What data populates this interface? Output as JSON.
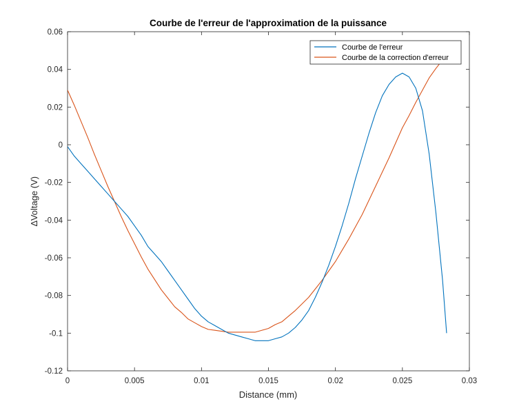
{
  "chart_data": {
    "type": "line",
    "title": "Courbe de l'erreur de l'approximation de la puissance",
    "xlabel": "Distance (mm)",
    "ylabel": "∆Voltage (V)",
    "xlim": [
      0,
      0.03
    ],
    "ylim": [
      -0.12,
      0.06
    ],
    "xticks": [
      0,
      0.005,
      0.01,
      0.015,
      0.02,
      0.025,
      0.03
    ],
    "xtick_labels": [
      "0",
      "0.005",
      "0.01",
      "0.015",
      "0.02",
      "0.025",
      "0.03"
    ],
    "yticks": [
      -0.12,
      -0.1,
      -0.08,
      -0.06,
      -0.04,
      -0.02,
      0,
      0.02,
      0.04,
      0.06
    ],
    "ytick_labels": [
      "-0.12",
      "-0.1",
      "-0.08",
      "-0.06",
      "-0.04",
      "-0.02",
      "0",
      "0.02",
      "0.04",
      "0.06"
    ],
    "grid": false,
    "legend_position": "top-right",
    "series": [
      {
        "name": "Courbe de l'erreur",
        "color": "#0072BD",
        "x": [
          0,
          0.0005,
          0.001,
          0.0015,
          0.002,
          0.0025,
          0.003,
          0.0035,
          0.004,
          0.0045,
          0.005,
          0.0055,
          0.006,
          0.0065,
          0.007,
          0.0075,
          0.008,
          0.0085,
          0.009,
          0.0095,
          0.01,
          0.0105,
          0.011,
          0.0115,
          0.012,
          0.0125,
          0.013,
          0.0135,
          0.014,
          0.0145,
          0.015,
          0.0155,
          0.016,
          0.0165,
          0.017,
          0.0175,
          0.018,
          0.0185,
          0.019,
          0.0195,
          0.02,
          0.0205,
          0.021,
          0.0215,
          0.022,
          0.0225,
          0.023,
          0.0235,
          0.024,
          0.0245,
          0.025,
          0.0255,
          0.026,
          0.0265,
          0.027,
          0.0275,
          0.028,
          0.0283
        ],
        "y": [
          -0.001,
          -0.006,
          -0.01,
          -0.014,
          -0.018,
          -0.022,
          -0.026,
          -0.03,
          -0.034,
          -0.038,
          -0.043,
          -0.048,
          -0.054,
          -0.058,
          -0.062,
          -0.067,
          -0.072,
          -0.077,
          -0.082,
          -0.087,
          -0.091,
          -0.094,
          -0.096,
          -0.098,
          -0.1,
          -0.101,
          -0.102,
          -0.103,
          -0.104,
          -0.104,
          -0.104,
          -0.103,
          -0.102,
          -0.1,
          -0.097,
          -0.093,
          -0.088,
          -0.081,
          -0.073,
          -0.064,
          -0.054,
          -0.043,
          -0.031,
          -0.018,
          -0.006,
          0.006,
          0.017,
          0.026,
          0.032,
          0.036,
          0.038,
          0.036,
          0.03,
          0.018,
          -0.005,
          -0.036,
          -0.072,
          -0.1
        ]
      },
      {
        "name": "Courbe de la correction d'erreur",
        "color": "#D95319",
        "x": [
          0,
          0.0005,
          0.001,
          0.0015,
          0.002,
          0.0025,
          0.003,
          0.0035,
          0.004,
          0.0045,
          0.005,
          0.0055,
          0.006,
          0.0065,
          0.007,
          0.0075,
          0.008,
          0.0085,
          0.009,
          0.0095,
          0.01,
          0.0105,
          0.011,
          0.0115,
          0.012,
          0.0125,
          0.013,
          0.0135,
          0.014,
          0.0145,
          0.015,
          0.0155,
          0.016,
          0.0165,
          0.017,
          0.0175,
          0.018,
          0.0185,
          0.019,
          0.0195,
          0.02,
          0.0205,
          0.021,
          0.0215,
          0.022,
          0.0225,
          0.023,
          0.0235,
          0.024,
          0.0245,
          0.025,
          0.0255,
          0.026,
          0.0265,
          0.027,
          0.0275,
          0.028,
          0.0283
        ],
        "y": [
          0.029,
          0.021,
          0.0125,
          0.004,
          -0.005,
          -0.0135,
          -0.022,
          -0.03,
          -0.038,
          -0.0455,
          -0.0525,
          -0.0595,
          -0.066,
          -0.0715,
          -0.077,
          -0.0815,
          -0.086,
          -0.089,
          -0.0925,
          -0.0945,
          -0.0965,
          -0.098,
          -0.0985,
          -0.099,
          -0.0995,
          -0.0995,
          -0.0995,
          -0.0995,
          -0.0995,
          -0.0985,
          -0.0975,
          -0.0955,
          -0.094,
          -0.091,
          -0.088,
          -0.0845,
          -0.081,
          -0.0765,
          -0.072,
          -0.067,
          -0.062,
          -0.056,
          -0.05,
          -0.0435,
          -0.037,
          -0.0295,
          -0.022,
          -0.0145,
          -0.007,
          0.001,
          0.009,
          0.0155,
          0.0225,
          0.029,
          0.0355,
          0.0405,
          0.045,
          0.0485
        ]
      }
    ]
  }
}
